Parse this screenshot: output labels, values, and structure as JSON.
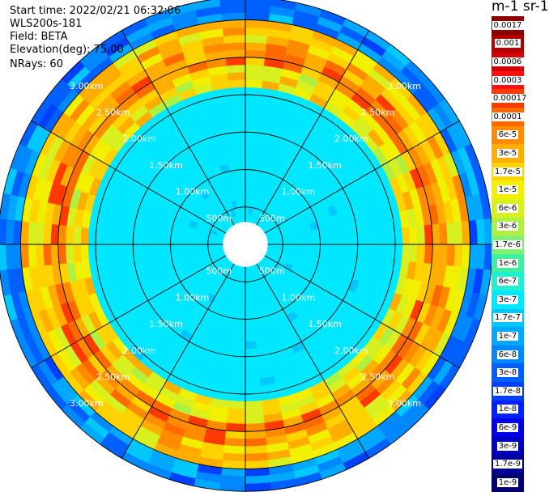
{
  "header": {
    "start_time": "Start time: 2022/02/21 06:32:06",
    "instrument": "WLS200s-181",
    "field": "Field: BETA",
    "elevation": "Elevation(deg): 75.00",
    "nrays": "NRays: 60"
  },
  "colorbar": {
    "units": "m-1 sr-1",
    "labels": [
      "0.0017",
      "0.001",
      "0.0006",
      "0.0003",
      "0.00017",
      "0.0001",
      "6e-5",
      "3e-5",
      "1.7e-5",
      "1e-5",
      "6e-6",
      "3e-6",
      "1.7e-6",
      "1e-6",
      "6e-7",
      "3e-7",
      "1.7e-7",
      "1e-7",
      "6e-8",
      "3e-8",
      "1.7e-8",
      "1e-8",
      "6e-9",
      "3e-9",
      "1.7e-9",
      "1e-9"
    ],
    "colors": [
      "#8a0000",
      "#b00000",
      "#d60000",
      "#ff1010",
      "#ff3a00",
      "#ff6a00",
      "#ff8c00",
      "#ffae00",
      "#ffd200",
      "#f0f000",
      "#d8f020",
      "#b0f040",
      "#80f070",
      "#40f0a0",
      "#20f0d0",
      "#00e8ff",
      "#00c8ff",
      "#00a8ff",
      "#0088ff",
      "#0060ff",
      "#0040ff",
      "#0020ff",
      "#0000e8",
      "#0000c0",
      "#00009a",
      "#000070"
    ]
  },
  "chart_data": {
    "type": "heatmap",
    "projection": "polar PPI",
    "field": "BETA",
    "nrays": 60,
    "grid_rings_km": [
      "500m",
      "1.00km",
      "1.50km",
      "2.00km",
      "2.50km",
      "3.00km"
    ],
    "ring_label_directions": [
      "NW",
      "NE",
      "SE",
      "SW"
    ],
    "spokes_deg": [
      0,
      30,
      60,
      90,
      120,
      150,
      180,
      210,
      240,
      270,
      300,
      330
    ],
    "rings_radius_m": [
      500,
      1000,
      1500,
      2000,
      2500,
      3000,
      3300
    ],
    "approx_value_by_range": [
      {
        "range_m": [
          0,
          2100
        ],
        "color_index": 15,
        "value": "3e-7"
      },
      {
        "range_m": [
          2100,
          2400
        ],
        "color_index": 9,
        "value": "1e-5"
      },
      {
        "range_m": [
          2400,
          2700
        ],
        "color_index": 6,
        "value": "6e-5"
      },
      {
        "range_m": [
          2700,
          3000
        ],
        "color_index": 8,
        "value": "1.7e-5"
      },
      {
        "range_m": [
          3000,
          3300
        ],
        "color_index": 17,
        "value": "1e-7"
      }
    ]
  }
}
